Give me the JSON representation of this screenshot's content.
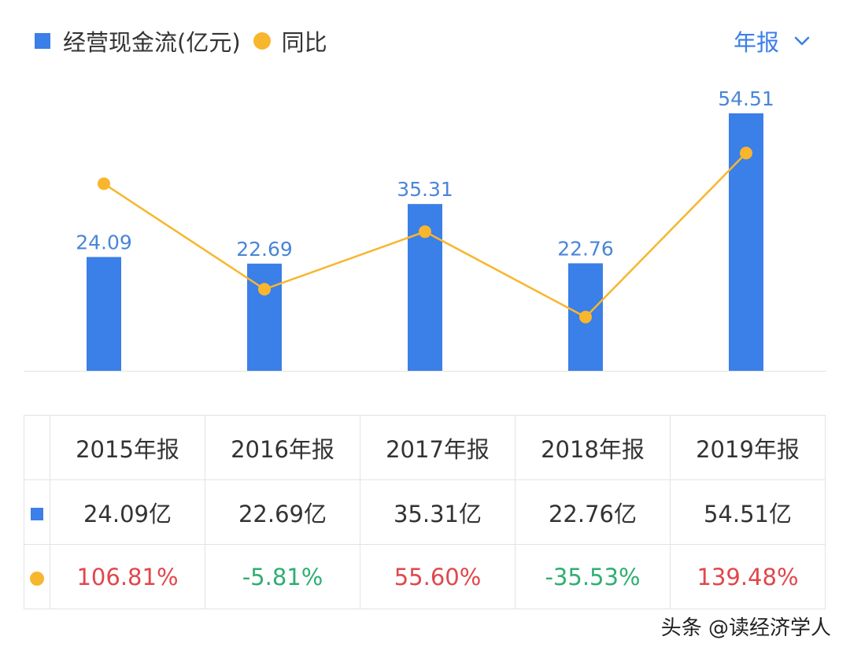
{
  "legend": {
    "series1": "经营现金流(亿元)",
    "series2": "同比"
  },
  "period_selector": {
    "label": "年报",
    "icon": "chevron-down-icon"
  },
  "colors": {
    "bar": "#3b7fe8",
    "line": "#f8b62d",
    "positive": "#e0474c",
    "negative": "#2fae72",
    "value_label": "#4a86d8"
  },
  "chart_data": {
    "type": "bar",
    "categories": [
      "2015年报",
      "2016年报",
      "2017年报",
      "2018年报",
      "2019年报"
    ],
    "series": [
      {
        "name": "经营现金流(亿元)",
        "kind": "bar",
        "values": [
          24.09,
          22.69,
          35.31,
          22.76,
          54.51
        ]
      },
      {
        "name": "同比",
        "kind": "line",
        "values": [
          106.81,
          -5.81,
          55.6,
          -35.53,
          139.48
        ]
      }
    ],
    "bar_labels": [
      "24.09",
      "22.69",
      "35.31",
      "22.76",
      "54.51"
    ],
    "title": "",
    "xlabel": "",
    "ylabel": "",
    "grid": false,
    "legend_position": "top-left"
  },
  "table": {
    "headers": [
      "2015年报",
      "2016年报",
      "2017年报",
      "2018年报",
      "2019年报"
    ],
    "row1": [
      "24.09亿",
      "22.69亿",
      "35.31亿",
      "22.76亿",
      "54.51亿"
    ],
    "row2": [
      "106.81%",
      "-5.81%",
      "55.60%",
      "-35.53%",
      "139.48%"
    ],
    "row2_sign": [
      "pos",
      "neg",
      "pos",
      "neg",
      "pos"
    ]
  },
  "watermark": "头条 @读经济学人"
}
